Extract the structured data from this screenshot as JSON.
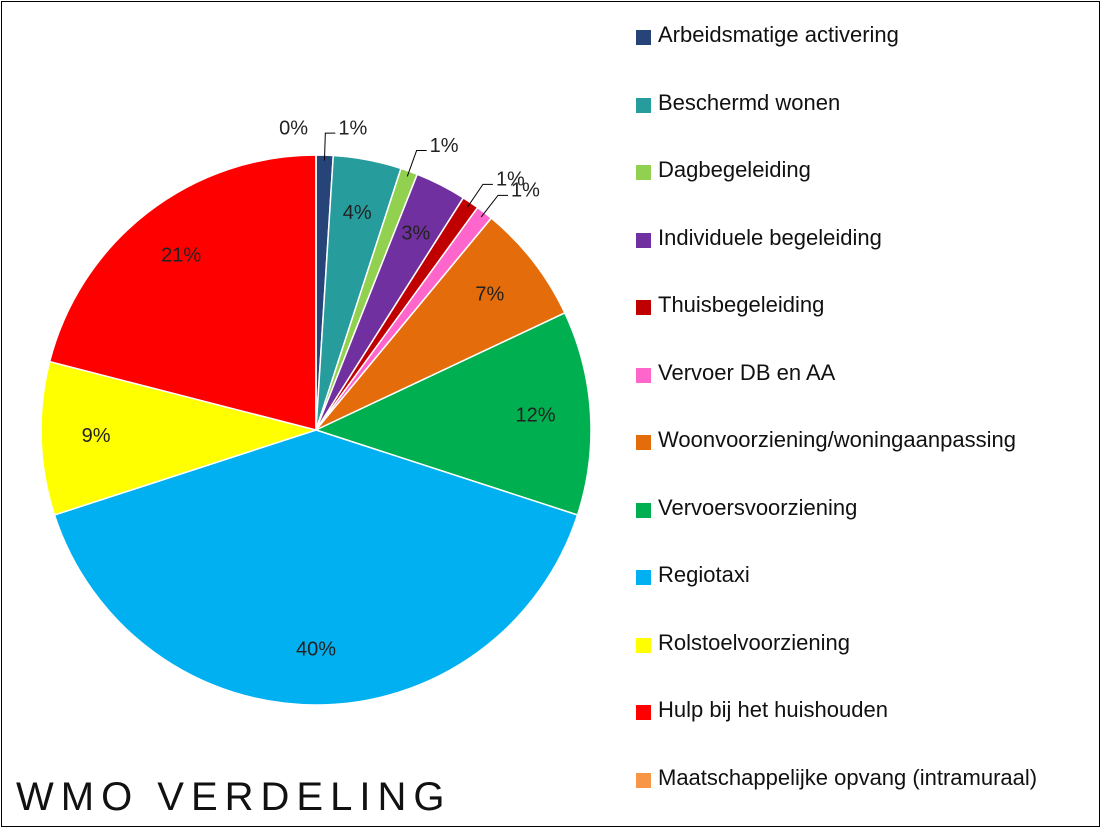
{
  "chart_data": {
    "type": "pie",
    "title": "WMO VERDELING",
    "categories": [
      "Arbeidsmatige activering",
      "Beschermd wonen",
      "Dagbegeleiding",
      "Individuele begeleiding",
      "Thuisbegeleiding",
      "Vervoer DB en AA",
      "Woonvoorziening/woningaanpassing",
      "Vervoersvoorziening",
      "Regiotaxi",
      "Rolstoelvoorziening",
      "Hulp bij het huishouden",
      "Maatschappelijke opvang (intramuraal)"
    ],
    "values": [
      1,
      4,
      1,
      3,
      1,
      1,
      7,
      12,
      40,
      9,
      21,
      0
    ],
    "value_labels": [
      "1%",
      "4%",
      "1%",
      "3%",
      "1%",
      "1%",
      "7%",
      "12%",
      "40%",
      "9%",
      "21%",
      "0%"
    ],
    "colors": [
      "#264478",
      "#269c9c",
      "#92d050",
      "#7030a0",
      "#c00000",
      "#ff66cc",
      "#e46c0a",
      "#00b050",
      "#00b0f0",
      "#ffff00",
      "#ff0000",
      "#f79646"
    ],
    "legend": "right"
  }
}
